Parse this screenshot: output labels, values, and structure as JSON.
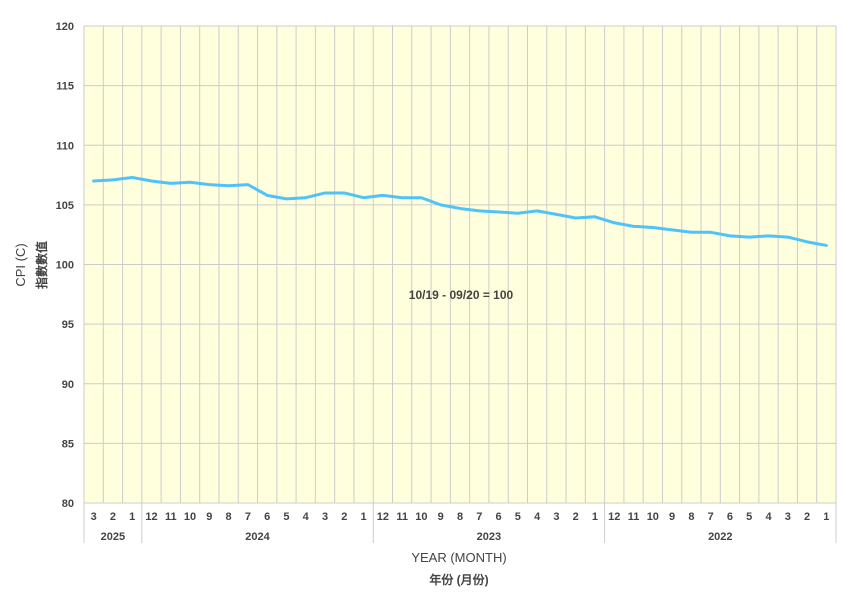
{
  "chart_data": {
    "type": "line",
    "ylabel": "CPI (C)",
    "ylabel_cn": "指數數值",
    "xlabel": "YEAR (MONTH)",
    "xlabel_cn": "年份 (月份)",
    "annotation": "10/19 - 09/20 = 100",
    "ylim": [
      80,
      120
    ],
    "yticks": [
      "80",
      "85",
      "90",
      "95",
      "100",
      "105",
      "110",
      "115",
      "120"
    ],
    "categories": [
      "3",
      "2",
      "1",
      "12",
      "11",
      "10",
      "9",
      "8",
      "7",
      "6",
      "5",
      "4",
      "3",
      "2",
      "1",
      "12",
      "11",
      "10",
      "9",
      "8",
      "7",
      "6",
      "5",
      "4",
      "3",
      "2",
      "1",
      "12",
      "11",
      "10",
      "9",
      "8",
      "7",
      "6",
      "5",
      "4",
      "3",
      "2",
      "1"
    ],
    "years": [
      {
        "label": "2025",
        "span": 3
      },
      {
        "label": "2024",
        "span": 12
      },
      {
        "label": "2023",
        "span": 12
      },
      {
        "label": "2022",
        "span": 12
      }
    ],
    "series": [
      {
        "values": [
          107.0,
          107.1,
          107.3,
          107.0,
          106.8,
          106.9,
          106.7,
          106.6,
          106.7,
          105.8,
          105.5,
          105.6,
          106.0,
          106.0,
          105.6,
          105.8,
          105.6,
          105.6,
          105.0,
          104.7,
          104.5,
          104.4,
          104.3,
          104.5,
          104.2,
          103.9,
          104.0,
          103.5,
          103.2,
          103.1,
          102.9,
          102.7,
          102.7,
          102.4,
          102.3,
          102.4,
          102.3,
          101.9,
          101.6
        ]
      }
    ],
    "colors": {
      "line": "#4FC3F7",
      "plot_bg": "#FFFFDD",
      "grid": "#CCCCCC"
    },
    "grid": true
  }
}
